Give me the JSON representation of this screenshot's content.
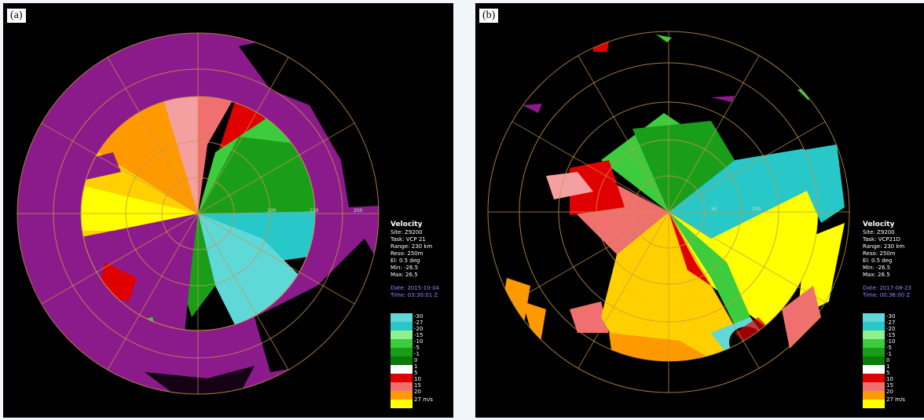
{
  "panels": [
    {
      "label": "(a)",
      "title": "Velocity",
      "site": "Site: Z9200",
      "task": "Task: VCP 21",
      "range": "Range: 230 km",
      "reso": "Reso: 250m",
      "el": "El: 0.5 deg",
      "min": "Min: -26.5",
      "max": "Max: 26.5",
      "date": "Date: 2015-10-04",
      "time": "Time: 03:30:01 Z",
      "rings": [
        "100",
        "150",
        "200"
      ]
    },
    {
      "label": "(b)",
      "title": "Velocity",
      "site": "Site: Z9200",
      "task": "Task: VCP21D",
      "range": "Range: 230 km",
      "reso": "Reso: 250m",
      "el": "El: 0.5 deg",
      "min": "Min: -26.5",
      "max": "Max: 26.5",
      "date": "Date: 2017-08-23",
      "time": "Time: 00:36:00 Z",
      "rings": [
        "50",
        "100"
      ]
    }
  ],
  "legend": {
    "labels": [
      "-30",
      "-27",
      "-20",
      "-15",
      "-10",
      "-5",
      "-1",
      "0",
      "1",
      "5",
      "10",
      "15",
      "20",
      "27 m/s"
    ],
    "colors": [
      "#5fd8d8",
      "#28c8c8",
      "#90f090",
      "#3dcc3d",
      "#1a9e1a",
      "#0a7a0a",
      "#ffffff",
      "#ffffff",
      "#e00000",
      "#f07070",
      "#f4a0a0",
      "#ff9900",
      "#ffd000",
      "#ffff00"
    ]
  },
  "colors": {
    "purple": "#8b1a8b",
    "ring": "#c8964a",
    "background": "#000000"
  }
}
